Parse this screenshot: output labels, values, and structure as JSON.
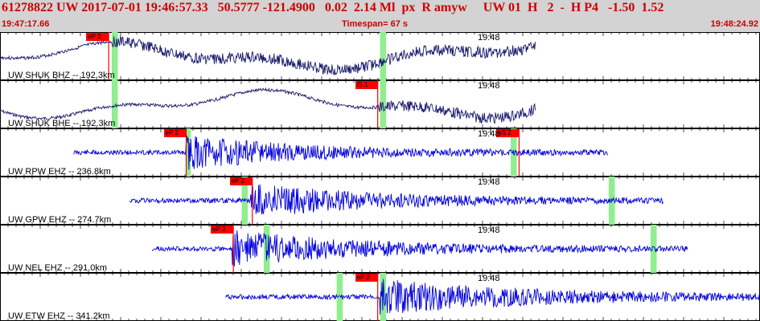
{
  "header": {
    "title": "61278822 UW 2017-07-01 19:46:57.33   50.5777 -121.4900   0.02  2.14 Ml  px  R amyw     UW 01  H   2  -  H P4   -1.50  1.52",
    "start_time": "19:47:17.66",
    "timespan": "Timespan=  67 s",
    "end_time": "19:48:24.92"
  },
  "colors": {
    "header_bg": "#d3d3d3",
    "header_text": "#cc0000",
    "trace_dark": "#1a1a6e",
    "trace_blue": "#0000dd",
    "pick": "#ff0000",
    "window": "#90ee90"
  },
  "panels": [
    {
      "label": "UW SHUK BHZ -- 192.3km",
      "tick": "19:48",
      "color": "dark",
      "start": 0.0,
      "end": 0.705,
      "amp": 14,
      "trend": true,
      "seed": 3,
      "picks": [
        {
          "text": "eP 2",
          "pos": 0.143
        }
      ],
      "windows": [
        {
          "pos": 0.147,
          "w": 0.008
        },
        {
          "pos": 0.5,
          "w": 0.008
        }
      ]
    },
    {
      "label": "UW SHUK BHE -- 192.3km",
      "tick": "19:48",
      "color": "dark",
      "start": 0.0,
      "end": 0.705,
      "amp": 14,
      "trend": true,
      "seed": 7,
      "picks": [
        {
          "text": "iS 1",
          "pos": 0.497
        }
      ],
      "windows": [
        {
          "pos": 0.147,
          "w": 0.008
        },
        {
          "pos": 0.5,
          "w": 0.008
        }
      ]
    },
    {
      "label": "UW RPW EHZ -- 236.8km",
      "tick": "19:48",
      "color": "blue",
      "start": 0.097,
      "end": 0.8,
      "amp": 20,
      "trend": false,
      "seed": 11,
      "onset": 0.245,
      "decay": 0.18,
      "picks": [
        {
          "text": "eP 2",
          "pos": 0.245
        },
        {
          "text": "eS 2",
          "pos": 0.683
        }
      ],
      "windows": [
        {
          "pos": 0.245,
          "w": 0.006
        },
        {
          "pos": 0.672,
          "w": 0.008
        }
      ]
    },
    {
      "label": "UW GPW EHZ -- 274.7km",
      "tick": "19:48",
      "color": "blue",
      "start": 0.17,
      "end": 0.873,
      "amp": 20,
      "trend": false,
      "seed": 19,
      "onset": 0.33,
      "decay": 0.2,
      "picks": [
        {
          "text": "eP 2",
          "pos": 0.332
        }
      ],
      "windows": [
        {
          "pos": 0.318,
          "w": 0.008
        },
        {
          "pos": 0.801,
          "w": 0.008
        }
      ]
    },
    {
      "label": "UW NEL EHZ -- 291.0km",
      "tick": "19:48",
      "color": "blue",
      "start": 0.2,
      "end": 0.905,
      "amp": 22,
      "trend": false,
      "seed": 23,
      "onset": 0.305,
      "decay": 0.2,
      "picks": [
        {
          "text": "eP 2",
          "pos": 0.307
        }
      ],
      "windows": [
        {
          "pos": 0.347,
          "w": 0.008
        },
        {
          "pos": 0.856,
          "w": 0.008
        }
      ]
    },
    {
      "label": "UW ETW EHZ -- 341.2km",
      "tick": "19:48",
      "color": "blue",
      "start": 0.297,
      "end": 1.0,
      "amp": 20,
      "trend": false,
      "seed": 31,
      "onset": 0.5,
      "decay": 0.25,
      "picks": [
        {
          "text": "eP 2",
          "pos": 0.497
        }
      ],
      "windows": [
        {
          "pos": 0.443,
          "w": 0.008
        },
        {
          "pos": 0.5,
          "w": 0.008
        }
      ]
    }
  ]
}
